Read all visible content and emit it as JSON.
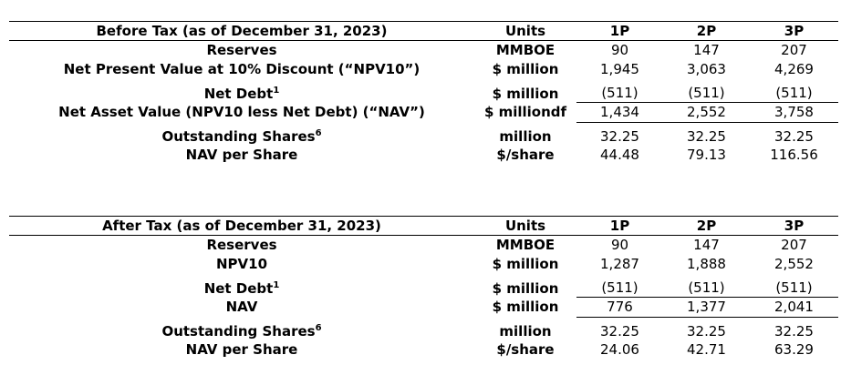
{
  "before_tax": {
    "title": "Before Tax (as of December 31, 2023)",
    "units_header": "Units",
    "columns": [
      "1P",
      "2P",
      "3P"
    ],
    "rows": [
      {
        "label": "Reserves",
        "sup": "",
        "unit": "MMBOE",
        "values": [
          "90",
          "147",
          "207"
        ]
      },
      {
        "label": "Net Present Value at 10% Discount (“NPV10”)",
        "sup": "",
        "unit": "$ million",
        "values": [
          "1,945",
          "3,063",
          "4,269"
        ]
      },
      {
        "label": "Net Debt",
        "sup": "1",
        "unit": "$ million",
        "values": [
          "(511)",
          "(511)",
          "(511)"
        ]
      },
      {
        "label": "Net Asset Value (NPV10 less Net Debt) (“NAV”)",
        "sup": "",
        "unit": "$ milliondf",
        "values": [
          "1,434",
          "2,552",
          "3,758"
        ]
      },
      {
        "label": "Outstanding Shares",
        "sup": "6",
        "unit": "million",
        "values": [
          "32.25",
          "32.25",
          "32.25"
        ]
      },
      {
        "label": "NAV per Share",
        "sup": "",
        "unit": "$/share",
        "values": [
          "44.48",
          "79.13",
          "116.56"
        ]
      }
    ]
  },
  "after_tax": {
    "title": "After Tax (as of December 31, 2023)",
    "units_header": "Units",
    "columns": [
      "1P",
      "2P",
      "3P"
    ],
    "rows": [
      {
        "label": "Reserves",
        "sup": "",
        "unit": "MMBOE",
        "values": [
          "90",
          "147",
          "207"
        ]
      },
      {
        "label": "NPV10",
        "sup": "",
        "unit": "$ million",
        "values": [
          "1,287",
          "1,888",
          "2,552"
        ]
      },
      {
        "label": "Net Debt",
        "sup": "1",
        "unit": "$ million",
        "values": [
          "(511)",
          "(511)",
          "(511)"
        ]
      },
      {
        "label": "NAV",
        "sup": "",
        "unit": "$ million",
        "values": [
          "776",
          "1,377",
          "2,041"
        ]
      },
      {
        "label": "Outstanding Shares",
        "sup": "6",
        "unit": "million",
        "values": [
          "32.25",
          "32.25",
          "32.25"
        ]
      },
      {
        "label": "NAV per Share",
        "sup": "",
        "unit": "$/share",
        "values": [
          "24.06",
          "42.71",
          "63.29"
        ]
      }
    ]
  }
}
